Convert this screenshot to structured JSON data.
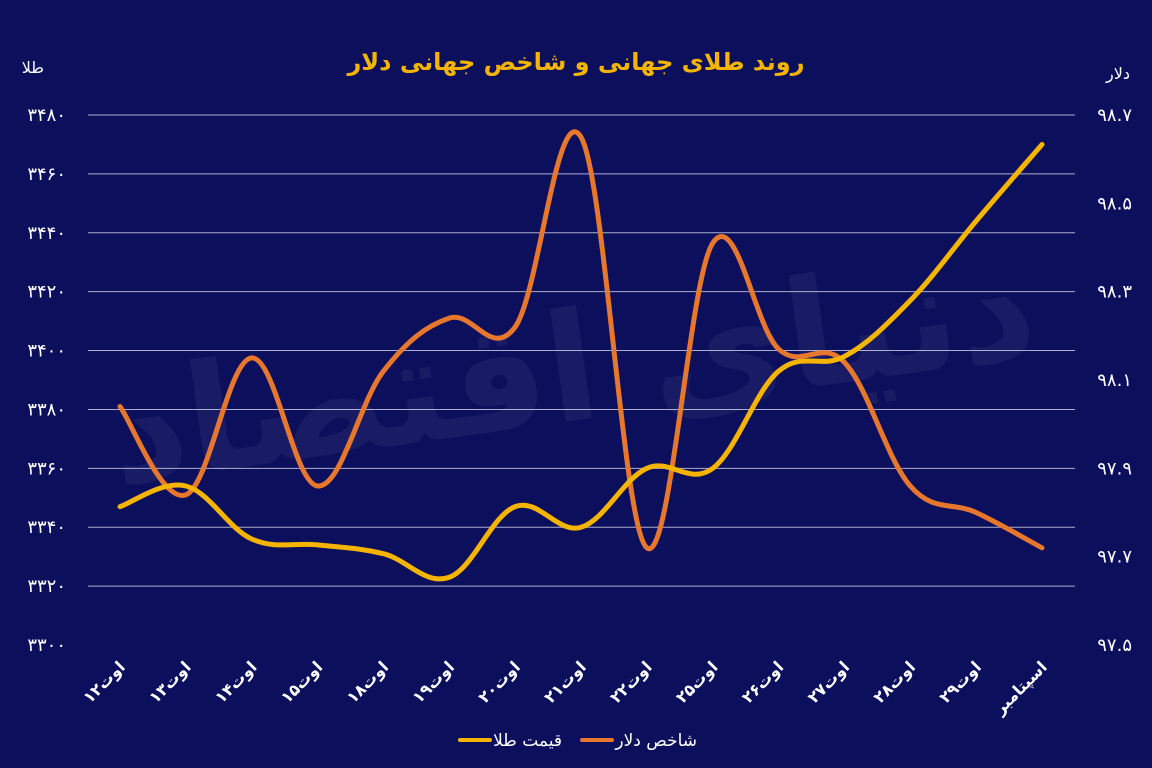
{
  "chart_data": {
    "type": "line",
    "title": "روند طلای جهانی و شاخص جهانی دلار",
    "left_axis_label": "طلا",
    "right_axis_label": "دلار",
    "categories": [
      "۱۲اوت",
      "۱۳اوت",
      "۱۴اوت",
      "۱۵اوت",
      "۱۸اوت",
      "۱۹اوت",
      "۲۰اوت",
      "۲۱اوت",
      "۲۲اوت",
      "۲۵اوت",
      "۲۶اوت",
      "۲۷اوت",
      "۲۸اوت",
      "۲۹اوت",
      "اسپتامبر"
    ],
    "left_ylim": [
      3300,
      3480
    ],
    "left_ticks": [
      3300,
      3320,
      3340,
      3360,
      3380,
      3400,
      3420,
      3440,
      3460,
      3480
    ],
    "left_tick_labels": [
      "۳۳۰۰",
      "۳۳۲۰",
      "۳۳۴۰",
      "۳۳۶۰",
      "۳۳۸۰",
      "۳۴۰۰",
      "۳۴۲۰",
      "۳۴۴۰",
      "۳۴۶۰",
      "۳۴۸۰"
    ],
    "right_ylim": [
      97.5,
      98.7
    ],
    "right_ticks": [
      97.5,
      97.7,
      97.9,
      98.1,
      98.3,
      98.5,
      98.7
    ],
    "right_tick_labels": [
      "۹۷.۵",
      "۹۷.۷",
      "۹۷.۹",
      "۹۸.۱",
      "۹۸.۳",
      "۹۸.۵",
      "۹۸.۷"
    ],
    "grid": true,
    "legend_position": "bottom",
    "series": [
      {
        "name": "قیمت طلا",
        "axis": "left",
        "color": "#f5b400",
        "values": [
          3347,
          3354,
          3336,
          3334,
          3331,
          3323,
          3347,
          3340,
          3360,
          3360,
          3393,
          3398,
          3417,
          3444,
          3470
        ]
      },
      {
        "name": "شاخص دلار",
        "axis": "right",
        "color": "#e8772e",
        "values": [
          98.04,
          97.84,
          98.15,
          97.86,
          98.12,
          98.24,
          98.22,
          98.65,
          97.72,
          98.41,
          98.17,
          98.14,
          97.86,
          97.8,
          97.72
        ]
      }
    ]
  },
  "watermark": "دنیای اقتصاد",
  "colors": {
    "background": "#0c0f5c",
    "title": "#f5b400",
    "grid": "#c9cbe3",
    "text": "#ffffff"
  }
}
